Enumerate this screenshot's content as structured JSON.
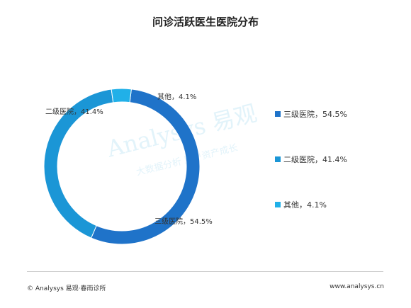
{
  "chart_data": {
    "type": "pie",
    "title": "问诊活跃医生医院分布",
    "categories": [
      "三级医院",
      "二级医院",
      "其他"
    ],
    "values": [
      54.5,
      41.4,
      4.1
    ],
    "slice_labels": [
      "三级医院，54.5%",
      "二级医院，41.4%",
      "其他，4.1%"
    ],
    "legend": [
      "三级医院，54.5%",
      "二级医院，41.4%",
      "其他，4.1%"
    ],
    "legend_position": "right",
    "colors": [
      "#1f73c9",
      "#1b96d6",
      "#21b0e8"
    ]
  },
  "watermark": {
    "brand": "Analysys 易观",
    "tagline": "大数据分析 用户资产成长"
  },
  "footer": {
    "left": "© Analysys 易观·春雨诊所",
    "right": "www.analysys.cn"
  }
}
